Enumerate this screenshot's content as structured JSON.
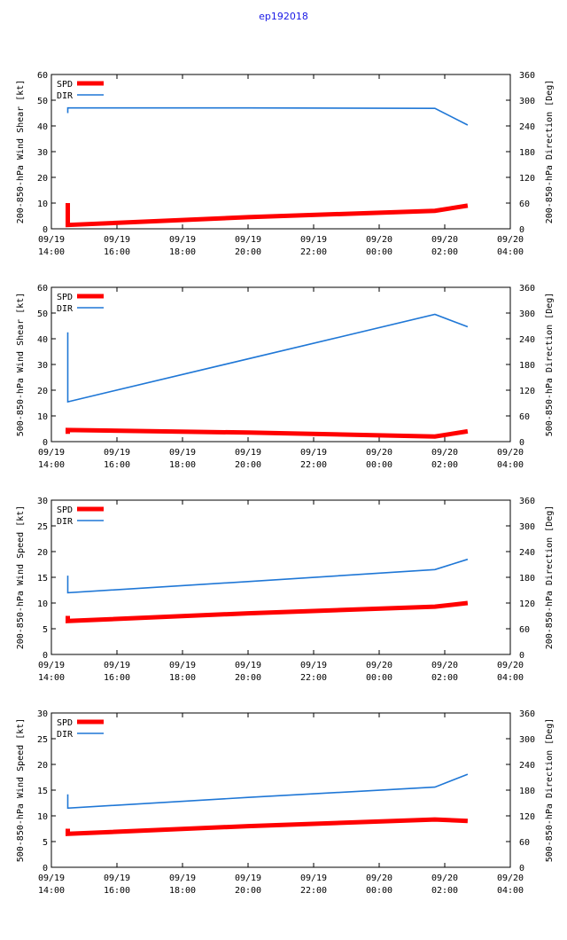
{
  "page_title": "ep192018",
  "colors": {
    "spd": "#ff0000",
    "dir": "#1f77d6",
    "title": "#1a1ae6",
    "axis": "#000000"
  },
  "x_ticks": [
    {
      "date": "09/19",
      "time": "14:00"
    },
    {
      "date": "09/19",
      "time": "16:00"
    },
    {
      "date": "09/19",
      "time": "18:00"
    },
    {
      "date": "09/19",
      "time": "20:00"
    },
    {
      "date": "09/19",
      "time": "22:00"
    },
    {
      "date": "09/20",
      "time": "00:00"
    },
    {
      "date": "09/20",
      "time": "02:00"
    },
    {
      "date": "09/20",
      "time": "04:00"
    }
  ],
  "chart_data": [
    {
      "type": "line",
      "title": "",
      "xlabel": "",
      "ylabel": "200-850-hPa Wind Shear [kt]",
      "y2label": "200-850-hPa Direction [Deg]",
      "xlim": [
        0,
        14
      ],
      "ylim": [
        0,
        60
      ],
      "y_ticks": [
        0,
        10,
        20,
        30,
        40,
        50,
        60
      ],
      "y2lim": [
        0,
        360
      ],
      "y2_ticks": [
        0,
        60,
        120,
        180,
        240,
        300,
        360
      ],
      "grid": false,
      "legend": "top-left",
      "series": [
        {
          "name": "SPD",
          "axis": "left",
          "color": "#ff0000",
          "x": [
            0.5,
            0.5,
            0.5,
            6,
            11.7,
            12.7
          ],
          "values": [
            10,
            1.5,
            1.5,
            4.5,
            7,
            9
          ]
        },
        {
          "name": "DIR",
          "axis": "right",
          "color": "#1f77d6",
          "x": [
            0.5,
            0.5,
            6,
            11.7,
            12.7
          ],
          "values": [
            270,
            282,
            282,
            281,
            242
          ]
        }
      ]
    },
    {
      "type": "line",
      "title": "",
      "xlabel": "",
      "ylabel": "500-850-hPa Wind Shear [kt]",
      "y2label": "500-850-hPa Direction [Deg]",
      "xlim": [
        0,
        14
      ],
      "ylim": [
        0,
        60
      ],
      "y_ticks": [
        0,
        10,
        20,
        30,
        40,
        50,
        60
      ],
      "y2lim": [
        0,
        360
      ],
      "y2_ticks": [
        0,
        60,
        120,
        180,
        240,
        300,
        360
      ],
      "grid": false,
      "legend": "top-left",
      "series": [
        {
          "name": "SPD",
          "axis": "left",
          "color": "#ff0000",
          "x": [
            0.5,
            0.5,
            6,
            11.7,
            12.7
          ],
          "values": [
            3,
            4.5,
            3.5,
            2,
            4
          ]
        },
        {
          "name": "DIR",
          "axis": "right",
          "color": "#1f77d6",
          "x": [
            0.5,
            0.5,
            11.7,
            12.7
          ],
          "values": [
            255,
            93,
            297,
            268
          ]
        }
      ]
    },
    {
      "type": "line",
      "title": "",
      "xlabel": "",
      "ylabel": "200-850-hPa Wind Speed [kt]",
      "y2label": "200-850-hPa Direction [Deg]",
      "xlim": [
        0,
        14
      ],
      "ylim": [
        0,
        30
      ],
      "y_ticks": [
        0,
        5,
        10,
        15,
        20,
        25,
        30
      ],
      "y2lim": [
        0,
        360
      ],
      "y2_ticks": [
        0,
        60,
        120,
        180,
        240,
        300,
        360
      ],
      "grid": false,
      "legend": "top-left",
      "series": [
        {
          "name": "SPD",
          "axis": "left",
          "color": "#ff0000",
          "x": [
            0.5,
            0.5,
            6,
            11.7,
            12.7
          ],
          "values": [
            7.5,
            6.5,
            8,
            9.3,
            10
          ]
        },
        {
          "name": "DIR",
          "axis": "right",
          "color": "#1f77d6",
          "x": [
            0.5,
            0.5,
            6,
            11.7,
            12.7
          ],
          "values": [
            184,
            144,
            170,
            198,
            222
          ]
        }
      ]
    },
    {
      "type": "line",
      "title": "",
      "xlabel": "",
      "ylabel": "500-850-hPa Wind Speed [kt]",
      "y2label": "500-850-hPa Direction [Deg]",
      "xlim": [
        0,
        14
      ],
      "ylim": [
        0,
        30
      ],
      "y_ticks": [
        0,
        5,
        10,
        15,
        20,
        25,
        30
      ],
      "y2lim": [
        0,
        360
      ],
      "y2_ticks": [
        0,
        60,
        120,
        180,
        240,
        300,
        360
      ],
      "grid": false,
      "legend": "top-left",
      "series": [
        {
          "name": "SPD",
          "axis": "left",
          "color": "#ff0000",
          "x": [
            0.5,
            0.5,
            6,
            11.7,
            12.7
          ],
          "values": [
            7.5,
            6.5,
            8,
            9.3,
            9
          ]
        },
        {
          "name": "DIR",
          "axis": "right",
          "color": "#1f77d6",
          "x": [
            0.5,
            0.5,
            6,
            11.7,
            12.7
          ],
          "values": [
            170,
            138,
            163,
            187,
            217
          ]
        }
      ]
    }
  ]
}
